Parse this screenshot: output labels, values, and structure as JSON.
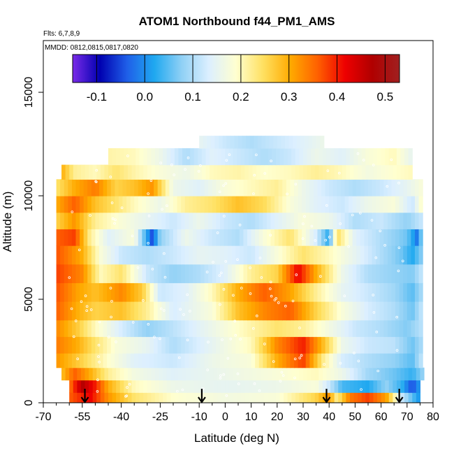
{
  "chart_data": {
    "type": "heatmap",
    "title": "ATOM1 Northbound f44_PM1_AMS",
    "notes": {
      "flights": "Flts: 6,7,8,9",
      "dates": "MMDD: 0812,0815,0817,0820"
    },
    "xlabel": "Latitude (deg N)",
    "ylabel": "Altitude (m)",
    "xlim": [
      -70,
      80
    ],
    "ylim": [
      0,
      17500
    ],
    "x_ticks": [
      -70,
      -55,
      -40,
      -25,
      -10,
      0,
      10,
      20,
      30,
      40,
      50,
      60,
      70,
      80
    ],
    "x_tick_labels": [
      "-70",
      "-55",
      "-40",
      "-25",
      "-10",
      "0",
      "10",
      "20",
      "30",
      "40",
      "50",
      "60",
      "70",
      "80"
    ],
    "x_minor_ticks": [
      -65,
      -60,
      -50,
      -45,
      -35,
      -30,
      -20,
      -15,
      -5,
      5,
      15,
      25,
      35,
      45,
      55,
      65,
      75
    ],
    "y_ticks": [
      0,
      5000,
      10000,
      15000
    ],
    "y_tick_labels": [
      "0",
      "5000",
      "10000",
      "15000"
    ],
    "colorbar": {
      "range": [
        -0.15,
        0.53
      ],
      "ticks": [
        -0.1,
        0.0,
        0.1,
        0.2,
        0.3,
        0.4,
        0.5
      ],
      "tick_labels": [
        "-0.1",
        "0.0",
        "0.1",
        "0.2",
        "0.3",
        "0.4",
        "0.5"
      ],
      "colors": [
        "#7a2be8",
        "#0000b0",
        "#1f5fe8",
        "#1fa8f0",
        "#8fd0f5",
        "#dcefff",
        "#ffffd0",
        "#ffe060",
        "#ffaa00",
        "#ff6000",
        "#ee0000",
        "#b00000",
        "#a02020"
      ]
    },
    "arrows_latitude": [
      -54,
      -9,
      39,
      67
    ],
    "profile_extent": [
      {
        "lat": -58,
        "top": 11400
      },
      {
        "lat": -45,
        "top": 11700
      },
      {
        "lat": -20,
        "top": 12000
      },
      {
        "lat": -5,
        "top": 12900
      },
      {
        "lat": 25,
        "top": 12900
      },
      {
        "lat": 40,
        "top": 12200
      },
      {
        "lat": 60,
        "top": 12000
      },
      {
        "lat": 72,
        "top": 11600
      }
    ],
    "bands": [
      {
        "alt": [
          0,
          500
        ],
        "values": [
          [
            -60,
            0.36
          ],
          [
            -52,
            0.42
          ],
          [
            -45,
            0.32
          ],
          [
            -35,
            0.24
          ],
          [
            -20,
            0.19
          ],
          [
            0,
            0.17
          ],
          [
            20,
            0.18
          ],
          [
            35,
            0.26
          ],
          [
            40,
            0.32
          ],
          [
            43,
            0.22
          ],
          [
            48,
            0.34
          ],
          [
            55,
            0.38
          ],
          [
            62,
            0.31
          ],
          [
            68,
            0.12
          ],
          [
            72,
            0.05
          ],
          [
            75,
            0.0
          ]
        ]
      },
      {
        "alt": [
          500,
          1100
        ],
        "values": [
          [
            -60,
            0.34
          ],
          [
            -55,
            0.47
          ],
          [
            -50,
            0.4
          ],
          [
            -45,
            0.3
          ],
          [
            -35,
            0.2
          ],
          [
            -20,
            0.16
          ],
          [
            0,
            0.15
          ],
          [
            20,
            0.16
          ],
          [
            35,
            0.18
          ],
          [
            40,
            0.12
          ],
          [
            45,
            0.04
          ],
          [
            55,
            0.02
          ],
          [
            62,
            0.08
          ],
          [
            68,
            0.03
          ],
          [
            72,
            -0.05
          ],
          [
            75,
            0.02
          ]
        ]
      },
      {
        "alt": [
          1100,
          1700
        ],
        "values": [
          [
            -63,
            0.28
          ],
          [
            -58,
            0.36
          ],
          [
            -52,
            0.3
          ],
          [
            -45,
            0.22
          ],
          [
            -35,
            0.17
          ],
          [
            -20,
            0.14
          ],
          [
            0,
            0.16
          ],
          [
            20,
            0.18
          ],
          [
            35,
            0.2
          ],
          [
            45,
            0.16
          ],
          [
            55,
            0.09
          ],
          [
            65,
            0.06
          ],
          [
            72,
            0.03
          ],
          [
            76,
            0.08
          ]
        ]
      },
      {
        "alt": [
          1700,
          2400
        ],
        "values": [
          [
            -65,
            0.32
          ],
          [
            -55,
            0.26
          ],
          [
            -45,
            0.19
          ],
          [
            -35,
            0.14
          ],
          [
            -20,
            0.12
          ],
          [
            -5,
            0.16
          ],
          [
            10,
            0.18
          ],
          [
            20,
            0.3
          ],
          [
            30,
            0.38
          ],
          [
            38,
            0.22
          ],
          [
            45,
            0.13
          ],
          [
            55,
            0.1
          ],
          [
            65,
            0.08
          ],
          [
            72,
            0.05
          ],
          [
            76,
            0.12
          ]
        ]
      },
      {
        "alt": [
          2400,
          3200
        ],
        "values": [
          [
            -65,
            0.34
          ],
          [
            -57,
            0.3
          ],
          [
            -50,
            0.24
          ],
          [
            -42,
            0.18
          ],
          [
            -30,
            0.15
          ],
          [
            -20,
            0.1
          ],
          [
            -5,
            0.15
          ],
          [
            10,
            0.2
          ],
          [
            20,
            0.33
          ],
          [
            30,
            0.4
          ],
          [
            38,
            0.28
          ],
          [
            45,
            0.16
          ],
          [
            55,
            0.12
          ],
          [
            65,
            0.11
          ],
          [
            72,
            0.06
          ],
          [
            76,
            0.1
          ]
        ]
      },
      {
        "alt": [
          3200,
          4000
        ],
        "values": [
          [
            -65,
            0.33
          ],
          [
            -57,
            0.27
          ],
          [
            -50,
            0.2
          ],
          [
            -40,
            0.13
          ],
          [
            -30,
            0.08
          ],
          [
            -20,
            0.11
          ],
          [
            -5,
            0.16
          ],
          [
            10,
            0.21
          ],
          [
            20,
            0.24
          ],
          [
            30,
            0.22
          ],
          [
            40,
            0.17
          ],
          [
            50,
            0.12
          ],
          [
            60,
            0.1
          ],
          [
            70,
            0.07
          ],
          [
            76,
            0.11
          ]
        ]
      },
      {
        "alt": [
          4000,
          4900
        ],
        "values": [
          [
            -65,
            0.36
          ],
          [
            -57,
            0.3
          ],
          [
            -50,
            0.26
          ],
          [
            -40,
            0.28
          ],
          [
            -30,
            0.22
          ],
          [
            -20,
            0.13
          ],
          [
            -5,
            0.18
          ],
          [
            5,
            0.28
          ],
          [
            15,
            0.33
          ],
          [
            25,
            0.36
          ],
          [
            35,
            0.26
          ],
          [
            45,
            0.18
          ],
          [
            55,
            0.13
          ],
          [
            65,
            0.1
          ],
          [
            72,
            0.06
          ],
          [
            76,
            0.12
          ]
        ]
      },
      {
        "alt": [
          4900,
          5800
        ],
        "values": [
          [
            -65,
            0.37
          ],
          [
            -57,
            0.31
          ],
          [
            -50,
            0.28
          ],
          [
            -40,
            0.33
          ],
          [
            -32,
            0.27
          ],
          [
            -25,
            0.12
          ],
          [
            -15,
            0.14
          ],
          [
            -5,
            0.2
          ],
          [
            5,
            0.3
          ],
          [
            15,
            0.36
          ],
          [
            25,
            0.31
          ],
          [
            35,
            0.22
          ],
          [
            45,
            0.15
          ],
          [
            55,
            0.12
          ],
          [
            65,
            0.09
          ],
          [
            72,
            0.05
          ],
          [
            76,
            0.1
          ]
        ]
      },
      {
        "alt": [
          5800,
          6700
        ],
        "values": [
          [
            -65,
            0.38
          ],
          [
            -55,
            0.33
          ],
          [
            -48,
            0.2
          ],
          [
            -40,
            0.24
          ],
          [
            -30,
            0.12
          ],
          [
            -20,
            0.08
          ],
          [
            -10,
            0.1
          ],
          [
            0,
            0.14
          ],
          [
            10,
            0.22
          ],
          [
            20,
            0.26
          ],
          [
            28,
            0.42
          ],
          [
            35,
            0.3
          ],
          [
            45,
            0.16
          ],
          [
            55,
            0.1
          ],
          [
            65,
            0.08
          ],
          [
            72,
            0.07
          ],
          [
            76,
            0.12
          ]
        ]
      },
      {
        "alt": [
          6700,
          7600
        ],
        "values": [
          [
            -65,
            0.37
          ],
          [
            -55,
            0.3
          ],
          [
            -48,
            0.18
          ],
          [
            -40,
            0.12
          ],
          [
            -30,
            0.1
          ],
          [
            -20,
            0.12
          ],
          [
            -10,
            0.15
          ],
          [
            0,
            0.14
          ],
          [
            10,
            0.12
          ],
          [
            20,
            0.18
          ],
          [
            30,
            0.24
          ],
          [
            40,
            0.2
          ],
          [
            50,
            0.15
          ],
          [
            60,
            0.1
          ],
          [
            68,
            0.06
          ],
          [
            72,
            0.02
          ],
          [
            76,
            0.08
          ]
        ]
      },
      {
        "alt": [
          7600,
          8400
        ],
        "values": [
          [
            -65,
            0.36
          ],
          [
            -58,
            0.38
          ],
          [
            -52,
            0.22
          ],
          [
            -45,
            0.14
          ],
          [
            -35,
            0.18
          ],
          [
            -28,
            -0.05
          ],
          [
            -25,
            0.08
          ],
          [
            -15,
            0.16
          ],
          [
            -5,
            0.12
          ],
          [
            5,
            0.1
          ],
          [
            15,
            0.18
          ],
          [
            25,
            0.24
          ],
          [
            35,
            0.13
          ],
          [
            40,
            0.02
          ],
          [
            43,
            0.25
          ],
          [
            50,
            0.14
          ],
          [
            60,
            0.1
          ],
          [
            70,
            0.06
          ],
          [
            74,
            -0.02
          ],
          [
            76,
            0.1
          ]
        ]
      },
      {
        "alt": [
          8400,
          9200
        ],
        "values": [
          [
            -65,
            0.26
          ],
          [
            -58,
            0.32
          ],
          [
            -50,
            0.22
          ],
          [
            -40,
            0.18
          ],
          [
            -30,
            0.15
          ],
          [
            -20,
            0.12
          ],
          [
            -10,
            0.16
          ],
          [
            0,
            0.12
          ],
          [
            10,
            0.1
          ],
          [
            20,
            0.14
          ],
          [
            30,
            0.18
          ],
          [
            40,
            0.16
          ],
          [
            50,
            0.1
          ],
          [
            60,
            0.12
          ],
          [
            70,
            0.08
          ],
          [
            76,
            0.12
          ]
        ]
      },
      {
        "alt": [
          9200,
          10000
        ],
        "values": [
          [
            -65,
            0.3
          ],
          [
            -58,
            0.36
          ],
          [
            -50,
            0.28
          ],
          [
            -42,
            0.24
          ],
          [
            -35,
            0.2
          ],
          [
            -25,
            0.16
          ],
          [
            -15,
            0.22
          ],
          [
            -5,
            0.24
          ],
          [
            5,
            0.28
          ],
          [
            15,
            0.25
          ],
          [
            25,
            0.18
          ],
          [
            35,
            0.14
          ],
          [
            45,
            0.12
          ],
          [
            55,
            0.16
          ],
          [
            65,
            0.18
          ],
          [
            72,
            0.12
          ],
          [
            76,
            0.2
          ]
        ]
      },
      {
        "alt": [
          10000,
          10800
        ],
        "values": [
          [
            -65,
            0.24
          ],
          [
            -58,
            0.3
          ],
          [
            -50,
            0.34
          ],
          [
            -42,
            0.26
          ],
          [
            -35,
            0.28
          ],
          [
            -28,
            0.32
          ],
          [
            -20,
            0.16
          ],
          [
            -10,
            0.14
          ],
          [
            0,
            0.18
          ],
          [
            10,
            0.2
          ],
          [
            20,
            0.22
          ],
          [
            30,
            0.16
          ],
          [
            40,
            0.12
          ],
          [
            50,
            0.1
          ],
          [
            60,
            0.12
          ],
          [
            70,
            0.15
          ],
          [
            76,
            0.18
          ]
        ]
      },
      {
        "alt": [
          10800,
          11500
        ],
        "values": [
          [
            -63,
            0.3
          ],
          [
            -58,
            0.22
          ],
          [
            -50,
            0.2
          ],
          [
            -42,
            0.24
          ],
          [
            -35,
            0.21
          ],
          [
            -25,
            0.18
          ],
          [
            -15,
            0.16
          ],
          [
            -5,
            0.2
          ],
          [
            5,
            0.21
          ],
          [
            15,
            0.19
          ],
          [
            25,
            0.2
          ],
          [
            35,
            0.22
          ],
          [
            45,
            0.2
          ],
          [
            55,
            0.17
          ],
          [
            65,
            0.19
          ],
          [
            72,
            0.2
          ]
        ]
      },
      {
        "alt": [
          11500,
          12300
        ],
        "values": [
          [
            -45,
            0.21
          ],
          [
            -35,
            0.2
          ],
          [
            -25,
            0.16
          ],
          [
            -15,
            0.1
          ],
          [
            -5,
            0.14
          ],
          [
            5,
            0.12
          ],
          [
            15,
            0.1
          ],
          [
            25,
            0.12
          ],
          [
            35,
            0.16
          ],
          [
            45,
            0.14
          ],
          [
            55,
            0.18
          ],
          [
            65,
            0.2
          ],
          [
            72,
            0.15
          ]
        ]
      },
      {
        "alt": [
          12300,
          12900
        ],
        "values": [
          [
            -10,
            0.15
          ],
          [
            0,
            0.12
          ],
          [
            10,
            0.1
          ],
          [
            20,
            0.12
          ],
          [
            30,
            0.14
          ],
          [
            38,
            0.16
          ]
        ]
      }
    ]
  }
}
